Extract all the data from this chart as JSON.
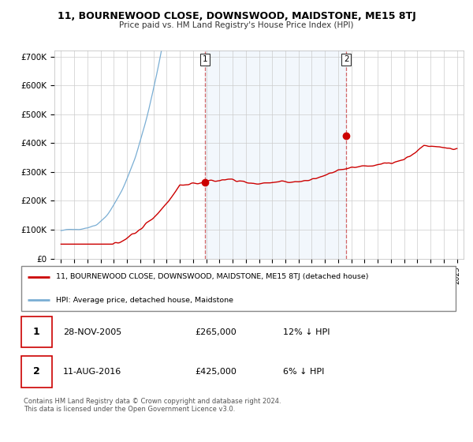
{
  "title": "11, BOURNEWOOD CLOSE, DOWNSWOOD, MAIDSTONE, ME15 8TJ",
  "subtitle": "Price paid vs. HM Land Registry's House Price Index (HPI)",
  "ylabel_ticks": [
    "£0",
    "£100K",
    "£200K",
    "£300K",
    "£400K",
    "£500K",
    "£600K",
    "£700K"
  ],
  "ytick_values": [
    0,
    100000,
    200000,
    300000,
    400000,
    500000,
    600000,
    700000
  ],
  "ylim": [
    0,
    720000
  ],
  "xlim_start": 1994.5,
  "xlim_end": 2025.5,
  "red_line_color": "#cc0000",
  "blue_line_color": "#7aaed4",
  "shade_color": "#ddeeff",
  "marker1_x": 2005.92,
  "marker1_y": 265000,
  "marker2_x": 2016.62,
  "marker2_y": 425000,
  "legend_entries": [
    "11, BOURNEWOOD CLOSE, DOWNSWOOD, MAIDSTONE, ME15 8TJ (detached house)",
    "HPI: Average price, detached house, Maidstone"
  ],
  "transaction1": {
    "label": "1",
    "date": "28-NOV-2005",
    "price": "£265,000",
    "hpi": "12% ↓ HPI"
  },
  "transaction2": {
    "label": "2",
    "date": "11-AUG-2016",
    "price": "£425,000",
    "hpi": "6% ↓ HPI"
  },
  "footnote": "Contains HM Land Registry data © Crown copyright and database right 2024.\nThis data is licensed under the Open Government Licence v3.0.",
  "background_color": "#ffffff",
  "grid_color": "#cccccc"
}
